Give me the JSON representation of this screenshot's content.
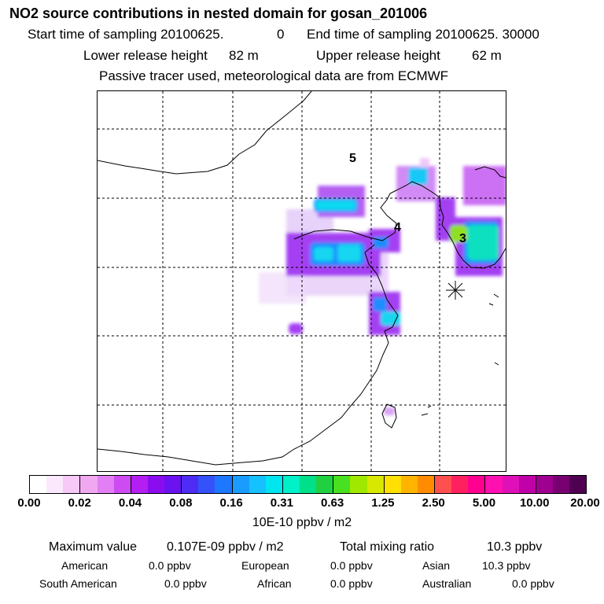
{
  "title": "NO2 source contributions in nested domain for gosan_201006",
  "header": {
    "start_label": "Start time of sampling 20100625.",
    "start_value": "0",
    "end_label": "End time of sampling 20100625. 30000",
    "lower_label": "Lower release height",
    "lower_value": "82 m",
    "upper_label": "Upper release height",
    "upper_value": "62 m",
    "tracer_note": "Passive tracer used, meteorological data are from ECMWF"
  },
  "map": {
    "labels": [
      "5",
      "4",
      "3"
    ],
    "receptor_marker": "asterisk-marker"
  },
  "colorbar": {
    "colors": [
      "#ffffff",
      "#fce8fc",
      "#f7c9f7",
      "#f0a8f0",
      "#e27ff4",
      "#cc4cf2",
      "#b41ef2",
      "#8c0cf0",
      "#6a12f0",
      "#4d2cf5",
      "#3552fa",
      "#1e78ff",
      "#1a9cff",
      "#16c1ff",
      "#00e6f0",
      "#00f0c8",
      "#00e08a",
      "#20d040",
      "#48e020",
      "#a0e800",
      "#d8e800",
      "#ffe000",
      "#ffb400",
      "#ff8c00",
      "#ff5050",
      "#ff2060",
      "#ff0090",
      "#ff10b0",
      "#e010b8",
      "#c000a8",
      "#a00090",
      "#780070",
      "#500050"
    ],
    "ticks": [
      "0.00",
      "0.02",
      "0.04",
      "0.08",
      "0.16",
      "0.31",
      "0.63",
      "1.25",
      "2.50",
      "5.00",
      "10.00",
      "20.00"
    ],
    "unit": "10E-10 ppbv / m2"
  },
  "stats": {
    "max_label": "Maximum value",
    "max_value": "0.107E-09 ppbv / m2",
    "total_label": "Total mixing ratio",
    "total_value": "10.3 ppbv",
    "regions": [
      {
        "name": "American",
        "value": "0.0 ppbv"
      },
      {
        "name": "European",
        "value": "0.0 ppbv"
      },
      {
        "name": "Asian",
        "value": "10.3 ppbv"
      },
      {
        "name": "South American",
        "value": "0.0 ppbv"
      },
      {
        "name": "African",
        "value": "0.0 ppbv"
      },
      {
        "name": "Australian",
        "value": "0.0 ppbv"
      }
    ]
  }
}
